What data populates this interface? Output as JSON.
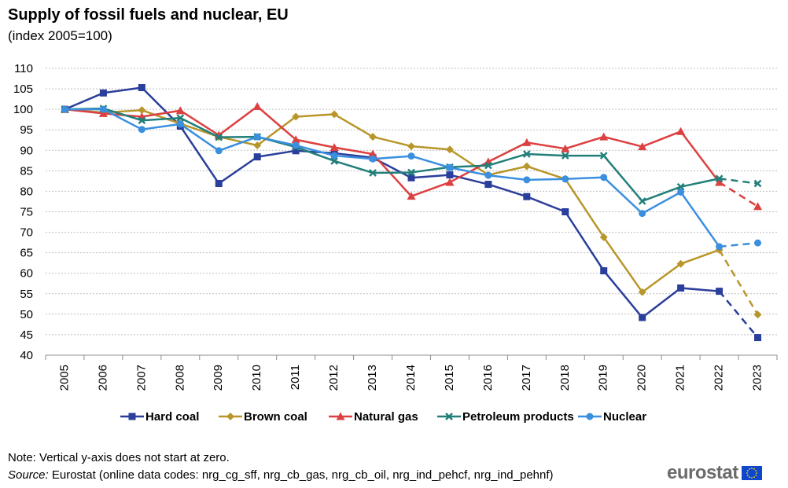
{
  "title": "Supply of fossil fuels and nuclear, EU",
  "subtitle": "(index 2005=100)",
  "note": "Note: Vertical y-axis does not start at zero.",
  "source_label": "Source:",
  "source_text": " Eurostat (online data codes: nrg_cg_sff, nrg_cb_gas, nrg_cb_oil, nrg_ind_pehcf, nrg_ind_pehnf)",
  "logo_text": "eurostat",
  "colors": {
    "hard_coal": "#2A3E9B",
    "brown_coal": "#B8962A",
    "natural_gas": "#DC4040",
    "petroleum": "#217F7A",
    "nuclear": "#3A8FDF",
    "grid": "#BFBFBF",
    "flag_blue": "#0E47CB",
    "flag_star": "#FFDE00"
  },
  "chart_data": {
    "type": "line",
    "x": [
      "2005",
      "2006",
      "2007",
      "2008",
      "2009",
      "2010",
      "2011",
      "2012",
      "2013",
      "2014",
      "2015",
      "2016",
      "2017",
      "2018",
      "2019",
      "2020",
      "2021",
      "2022",
      "2023"
    ],
    "ylim": [
      40,
      110
    ],
    "yticks": [
      40,
      45,
      50,
      55,
      60,
      65,
      70,
      75,
      80,
      85,
      90,
      95,
      100,
      105,
      110
    ],
    "grid": true,
    "legend_position": "bottom",
    "dashed_last_segment": true,
    "series": [
      {
        "name": "Hard coal",
        "marker": "square",
        "color_key": "hard_coal",
        "values": [
          100,
          104,
          105.3,
          95.9,
          81.9,
          88.4,
          89.9,
          89.3,
          88.2,
          83.3,
          84,
          81.7,
          78.7,
          75,
          60.6,
          49.2,
          56.4,
          55.6,
          44.3
        ]
      },
      {
        "name": "Brown coal",
        "marker": "diamond",
        "color_key": "brown_coal",
        "values": [
          100,
          99.2,
          99.8,
          96.5,
          93.3,
          91.2,
          98.2,
          98.8,
          93.3,
          91,
          90.2,
          84,
          86.1,
          83,
          68.8,
          55.4,
          62.3,
          65.7,
          49.9
        ]
      },
      {
        "name": "Natural gas",
        "marker": "triangle",
        "color_key": "natural_gas",
        "values": [
          100,
          99,
          98.2,
          99.7,
          93.7,
          100.7,
          92.6,
          90.7,
          89.1,
          78.8,
          82.2,
          87.2,
          91.9,
          90.4,
          93.3,
          90.9,
          94.6,
          82.2,
          76.3
        ]
      },
      {
        "name": "Petroleum products",
        "marker": "cross",
        "color_key": "petroleum",
        "values": [
          100,
          100.2,
          97.3,
          97.9,
          93.2,
          93.3,
          90.8,
          87.4,
          84.5,
          84.6,
          85.9,
          86.3,
          89.1,
          88.7,
          88.7,
          77.6,
          81.1,
          83.1,
          81.9
        ]
      },
      {
        "name": "Nuclear",
        "marker": "circle",
        "color_key": "nuclear",
        "values": [
          100,
          100,
          95.1,
          96.4,
          89.9,
          93.3,
          91.2,
          88.7,
          87.9,
          88.6,
          85.8,
          83.9,
          82.8,
          83,
          83.4,
          74.6,
          79.8,
          66.5,
          67.4
        ]
      }
    ]
  }
}
